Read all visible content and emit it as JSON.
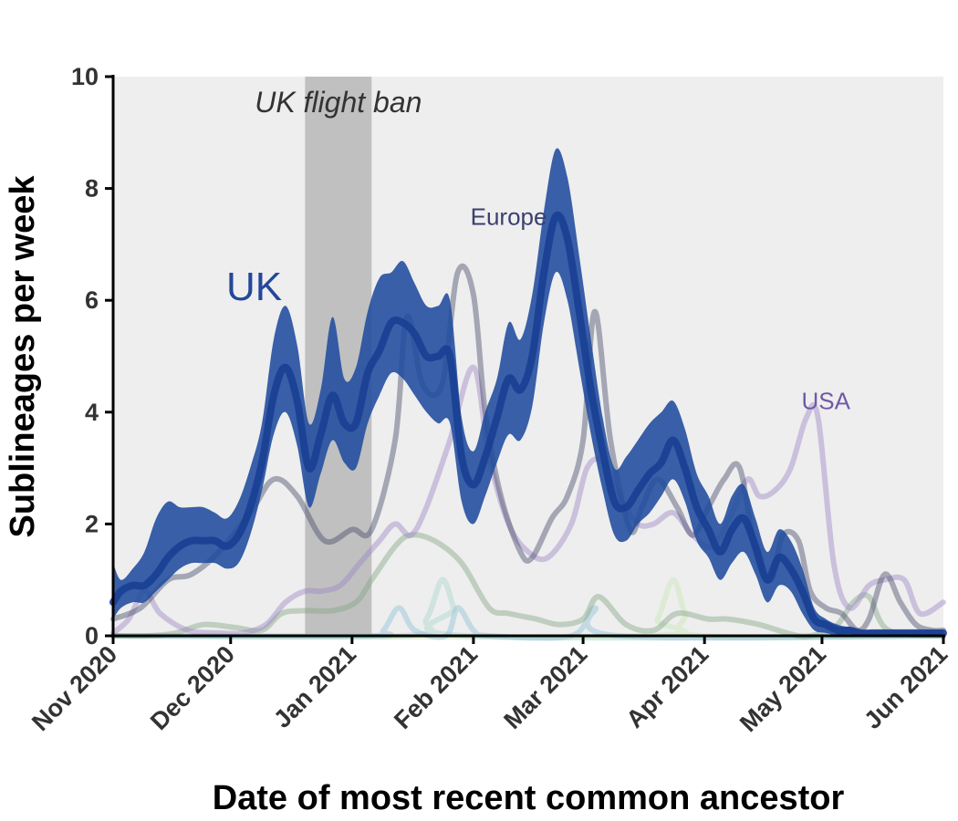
{
  "chart_data": {
    "type": "line",
    "xlabel": "Date of most recent common ancestor",
    "ylabel": "Sublineages per week",
    "xlim": [
      "2020-11-01",
      "2021-06-01"
    ],
    "ylim": [
      0,
      10
    ],
    "yticks": [
      0,
      2,
      4,
      6,
      8,
      10
    ],
    "xticks": [
      {
        "date": "2020-11-01",
        "label": "Nov 2020"
      },
      {
        "date": "2020-12-01",
        "label": "Dec 2020"
      },
      {
        "date": "2021-01-01",
        "label": "Jan 2021"
      },
      {
        "date": "2021-02-01",
        "label": "Feb 2021"
      },
      {
        "date": "2021-03-01",
        "label": "Mar 2021"
      },
      {
        "date": "2021-04-01",
        "label": "Apr 2021"
      },
      {
        "date": "2021-05-01",
        "label": "May 2021"
      },
      {
        "date": "2021-06-01",
        "label": "Jun 2021"
      }
    ],
    "background_color": "#eeeeee",
    "shaded_region": {
      "label": "UK flight ban",
      "start": "2020-12-20",
      "end": "2021-01-06",
      "color": "#c0c0c0"
    },
    "annotations": [
      {
        "text": "UK",
        "x": "2020-12-07",
        "y": 6.0,
        "color": "#24479a"
      },
      {
        "text": "Europe",
        "x": "2021-02-10",
        "y": 7.35,
        "color": "#3a3f70"
      },
      {
        "text": "USA",
        "x": "2021-05-02",
        "y": 4.05,
        "color": "#7058a8"
      }
    ],
    "series": [
      {
        "name": "UK",
        "color": "#24479a",
        "band_color": "#1f4b9e",
        "x": [
          "2020-11-01",
          "2020-11-03",
          "2020-11-06",
          "2020-11-09",
          "2020-11-12",
          "2020-11-15",
          "2020-11-18",
          "2020-11-21",
          "2020-11-24",
          "2020-11-27",
          "2020-11-30",
          "2020-12-03",
          "2020-12-06",
          "2020-12-09",
          "2020-12-12",
          "2020-12-15",
          "2020-12-18",
          "2020-12-21",
          "2020-12-24",
          "2020-12-27",
          "2020-12-30",
          "2021-01-02",
          "2021-01-05",
          "2021-01-08",
          "2021-01-11",
          "2021-01-14",
          "2021-01-17",
          "2021-01-20",
          "2021-01-23",
          "2021-01-26",
          "2021-01-29",
          "2021-02-01",
          "2021-02-04",
          "2021-02-07",
          "2021-02-10",
          "2021-02-13",
          "2021-02-16",
          "2021-02-19",
          "2021-02-22",
          "2021-02-25",
          "2021-02-28",
          "2021-03-03",
          "2021-03-06",
          "2021-03-09",
          "2021-03-12",
          "2021-03-15",
          "2021-03-18",
          "2021-03-21",
          "2021-03-24",
          "2021-03-27",
          "2021-03-30",
          "2021-04-02",
          "2021-04-05",
          "2021-04-08",
          "2021-04-11",
          "2021-04-14",
          "2021-04-17",
          "2021-04-20",
          "2021-04-23",
          "2021-04-26",
          "2021-04-29",
          "2021-05-02",
          "2021-05-05",
          "2021-05-08",
          "2021-05-11",
          "2021-05-14",
          "2021-05-17",
          "2021-05-20",
          "2021-05-23",
          "2021-05-26",
          "2021-05-29",
          "2021-06-01"
        ],
        "y": [
          0.6,
          0.8,
          0.9,
          0.9,
          1.1,
          1.4,
          1.6,
          1.7,
          1.7,
          1.7,
          1.6,
          1.8,
          2.3,
          3.1,
          4.3,
          4.8,
          4.2,
          3.0,
          3.6,
          4.3,
          3.8,
          3.8,
          4.7,
          5.1,
          5.6,
          5.6,
          5.4,
          5.0,
          5.0,
          5.0,
          3.2,
          2.7,
          3.2,
          3.9,
          4.6,
          4.4,
          5.0,
          6.5,
          7.5,
          7.1,
          5.8,
          4.4,
          3.3,
          2.4,
          2.3,
          2.6,
          2.9,
          3.1,
          3.5,
          3.0,
          2.3,
          1.9,
          1.5,
          1.9,
          2.1,
          1.6,
          1.0,
          1.4,
          1.2,
          0.8,
          0.3,
          0.2,
          0.1,
          0.1,
          0.05,
          0.05,
          0.05,
          0.05,
          0.05,
          0.05,
          0.05,
          0.05
        ],
        "lower": [
          0.3,
          0.5,
          0.6,
          0.6,
          0.8,
          1.0,
          1.2,
          1.3,
          1.3,
          1.3,
          1.2,
          1.3,
          1.8,
          2.6,
          3.6,
          4.0,
          3.4,
          2.3,
          2.9,
          3.5,
          3.1,
          3.0,
          3.8,
          4.3,
          4.7,
          4.6,
          4.3,
          4.0,
          3.8,
          3.8,
          2.4,
          2.0,
          2.5,
          3.1,
          3.6,
          3.5,
          4.1,
          5.6,
          6.5,
          6.0,
          4.8,
          3.6,
          2.6,
          1.8,
          1.7,
          2.0,
          2.2,
          2.5,
          2.8,
          2.4,
          1.7,
          1.4,
          1.0,
          1.3,
          1.5,
          1.1,
          0.6,
          0.9,
          0.8,
          0.4,
          0.1,
          0.05,
          0,
          0,
          0,
          0,
          0,
          0,
          0,
          0,
          0,
          0
        ],
        "upper": [
          1.3,
          1.0,
          1.2,
          1.5,
          2.1,
          2.4,
          2.3,
          2.3,
          2.3,
          2.2,
          2.1,
          2.4,
          3.0,
          3.8,
          5.3,
          5.9,
          5.2,
          3.8,
          4.4,
          5.7,
          4.6,
          4.8,
          5.8,
          6.4,
          6.5,
          6.7,
          6.3,
          5.9,
          5.9,
          6.0,
          3.9,
          3.3,
          4.0,
          4.6,
          5.6,
          5.3,
          6.1,
          7.6,
          8.7,
          8.2,
          6.8,
          5.3,
          3.9,
          3.0,
          3.2,
          3.5,
          3.8,
          4.0,
          4.2,
          3.7,
          2.9,
          2.5,
          2.0,
          2.5,
          2.7,
          2.1,
          1.5,
          1.9,
          1.7,
          1.2,
          0.5,
          0.3,
          0.2,
          0.15,
          0.1,
          0.1,
          0.1,
          0.1,
          0.1,
          0.1,
          0.1,
          0.1
        ]
      },
      {
        "name": "Europe",
        "color": "#4a4d6c",
        "x": [
          "2020-11-01",
          "2020-11-08",
          "2020-11-15",
          "2020-11-21",
          "2020-11-28",
          "2020-12-06",
          "2020-12-12",
          "2020-12-18",
          "2020-12-25",
          "2021-01-01",
          "2021-01-06",
          "2021-01-12",
          "2021-01-15",
          "2021-01-19",
          "2021-01-24",
          "2021-01-28",
          "2021-02-01",
          "2021-02-04",
          "2021-02-08",
          "2021-02-13",
          "2021-02-16",
          "2021-02-21",
          "2021-02-25",
          "2021-03-01",
          "2021-03-04",
          "2021-03-08",
          "2021-03-13",
          "2021-03-16",
          "2021-03-20",
          "2021-03-25",
          "2021-03-29",
          "2021-04-02",
          "2021-04-06",
          "2021-04-10",
          "2021-04-14",
          "2021-04-18",
          "2021-04-21",
          "2021-04-25",
          "2021-04-28",
          "2021-05-02",
          "2021-05-06",
          "2021-05-10",
          "2021-05-13",
          "2021-05-17",
          "2021-05-21",
          "2021-05-25",
          "2021-05-29",
          "2021-06-01"
        ],
        "y": [
          0.3,
          0.5,
          1.0,
          1.1,
          1.5,
          2.2,
          2.8,
          2.5,
          1.7,
          1.9,
          1.9,
          3.5,
          5.7,
          4.5,
          4.5,
          6.5,
          6.1,
          4.0,
          2.5,
          1.5,
          1.4,
          2.1,
          2.5,
          3.5,
          5.8,
          3.5,
          1.9,
          2.3,
          2.8,
          2.3,
          1.8,
          2.3,
          2.8,
          3.0,
          1.5,
          1.0,
          1.8,
          1.7,
          0.8,
          0.5,
          0.4,
          0.1,
          0.3,
          1.1,
          0.6,
          0.2,
          0.1,
          0.1
        ]
      },
      {
        "name": "USA",
        "color": "#9d88c6",
        "x": [
          "2020-11-01",
          "2020-11-05",
          "2020-11-09",
          "2020-11-13",
          "2020-11-20",
          "2020-11-28",
          "2020-12-04",
          "2020-12-10",
          "2020-12-15",
          "2020-12-20",
          "2020-12-24",
          "2020-12-29",
          "2021-01-03",
          "2021-01-08",
          "2021-01-12",
          "2021-01-16",
          "2021-01-20",
          "2021-01-26",
          "2021-02-01",
          "2021-02-05",
          "2021-02-10",
          "2021-02-15",
          "2021-02-20",
          "2021-02-26",
          "2021-03-02",
          "2021-03-06",
          "2021-03-11",
          "2021-03-15",
          "2021-03-19",
          "2021-03-24",
          "2021-03-29",
          "2021-04-03",
          "2021-04-08",
          "2021-04-12",
          "2021-04-15",
          "2021-04-19",
          "2021-04-23",
          "2021-04-27",
          "2021-04-30",
          "2021-05-04",
          "2021-05-08",
          "2021-05-13",
          "2021-05-17",
          "2021-05-22",
          "2021-05-26",
          "2021-06-01"
        ],
        "y": [
          0.05,
          0.3,
          0.8,
          0.4,
          0.1,
          0.05,
          0.05,
          0.2,
          0.6,
          0.8,
          0.8,
          0.9,
          1.3,
          1.7,
          2.0,
          1.8,
          2.3,
          3.5,
          4.8,
          3.2,
          2.0,
          1.5,
          1.4,
          2.0,
          3.0,
          3.1,
          2.4,
          2.0,
          2.0,
          2.2,
          1.8,
          1.6,
          2.2,
          2.8,
          2.5,
          2.6,
          3.0,
          3.9,
          3.9,
          1.3,
          0.5,
          0.9,
          1.0,
          1.0,
          0.4,
          0.6
        ]
      },
      {
        "name": "",
        "color": "#86a786",
        "x": [
          "2020-11-01",
          "2020-11-10",
          "2020-11-17",
          "2020-11-24",
          "2020-12-02",
          "2020-12-09",
          "2020-12-14",
          "2020-12-20",
          "2020-12-27",
          "2021-01-02",
          "2021-01-06",
          "2021-01-12",
          "2021-01-16",
          "2021-01-22",
          "2021-01-29",
          "2021-02-05",
          "2021-02-10",
          "2021-02-17",
          "2021-02-23",
          "2021-03-01",
          "2021-03-05",
          "2021-03-12",
          "2021-03-19",
          "2021-03-25",
          "2021-04-02",
          "2021-04-07",
          "2021-04-15",
          "2021-04-25",
          "2021-05-01",
          "2021-05-05",
          "2021-05-09",
          "2021-05-13",
          "2021-05-18",
          "2021-06-01"
        ],
        "y": [
          0,
          0,
          0.05,
          0.2,
          0.15,
          0.1,
          0.4,
          0.45,
          0.45,
          0.6,
          1.0,
          1.6,
          1.8,
          1.7,
          1.3,
          0.5,
          0.4,
          0.3,
          0.2,
          0.3,
          0.7,
          0.2,
          0.1,
          0.4,
          0.3,
          0.3,
          0.2,
          0,
          0.05,
          0.2,
          0.6,
          0.7,
          0.1,
          0
        ]
      },
      {
        "name": "",
        "color": "#8fc2d8",
        "x": [
          "2020-11-01",
          "2021-01-05",
          "2021-01-09",
          "2021-01-13",
          "2021-01-17",
          "2021-01-25",
          "2021-01-28",
          "2021-02-01",
          "2021-02-05",
          "2021-02-26",
          "2021-03-04",
          "2021-03-10",
          "2021-06-01"
        ],
        "y": [
          0,
          0,
          0.1,
          0.5,
          0.1,
          0,
          0.5,
          0.1,
          0,
          0,
          0.5,
          0,
          0
        ]
      },
      {
        "name": "",
        "color": "#a8d4cc",
        "x": [
          "2020-11-01",
          "2021-01-14",
          "2021-01-20",
          "2021-01-24",
          "2021-01-27",
          "2021-01-30",
          "2021-06-01"
        ],
        "y": [
          0,
          0,
          0.3,
          1.0,
          0.5,
          0,
          0
        ]
      },
      {
        "name": "",
        "color": "#c8e6b4",
        "x": [
          "2020-11-01",
          "2021-03-16",
          "2021-03-20",
          "2021-03-24",
          "2021-03-27",
          "2021-03-31",
          "2021-06-01"
        ],
        "y": [
          0,
          0,
          0.3,
          1.0,
          0.4,
          0,
          0
        ]
      }
    ]
  }
}
